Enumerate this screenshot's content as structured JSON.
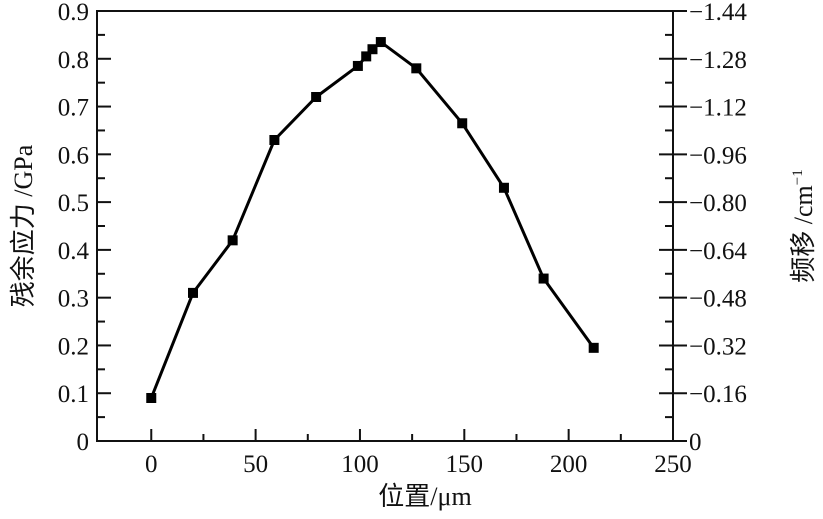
{
  "chart_data": {
    "type": "line",
    "title": "",
    "xlabel": "位置/μm",
    "ylabel": "残余应力 /GPa",
    "y2label": "频移 /cm⁻¹",
    "y2label_parts": {
      "text": "频移 /cm",
      "sup": "−1"
    },
    "xlim": [
      -26,
      250
    ],
    "ylim": [
      0,
      0.9
    ],
    "y2lim": [
      0,
      -1.44
    ],
    "xticks": [
      "0",
      "50",
      "100",
      "150",
      "200",
      "250"
    ],
    "yticks": [
      "0",
      "0.1",
      "0.2",
      "0.3",
      "0.4",
      "0.5",
      "0.6",
      "0.7",
      "0.8",
      "0.9"
    ],
    "y2ticks": [
      "0",
      "−0.16",
      "−0.32",
      "−0.48",
      "−0.64",
      "−0.80",
      "−0.96",
      "−1.12",
      "−1.28",
      "−1.44"
    ],
    "grid": false,
    "marker": "square",
    "series": [
      {
        "name": "残余应力",
        "color": "#000000",
        "x": [
          0,
          20,
          39,
          59,
          79,
          99,
          103,
          106,
          110,
          127,
          149,
          169,
          188,
          212
        ],
        "y": [
          0.09,
          0.31,
          0.42,
          0.63,
          0.72,
          0.785,
          0.805,
          0.82,
          0.835,
          0.78,
          0.665,
          0.53,
          0.34,
          0.195
        ]
      }
    ]
  }
}
